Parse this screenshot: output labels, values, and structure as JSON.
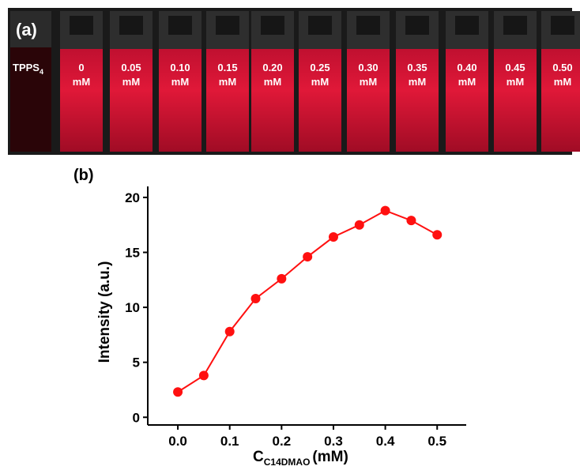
{
  "photo": {
    "label": "(a)",
    "reference": {
      "text": "TPPS",
      "sub": "4"
    },
    "samples": [
      {
        "value": "0",
        "unit": "mM"
      },
      {
        "value": "0.05",
        "unit": "mM"
      },
      {
        "value": "0.10",
        "unit": "mM"
      },
      {
        "value": "0.15",
        "unit": "mM"
      },
      {
        "value": "0.20",
        "unit": "mM"
      },
      {
        "value": "0.25",
        "unit": "mM"
      },
      {
        "value": "0.30",
        "unit": "mM"
      },
      {
        "value": "0.35",
        "unit": "mM"
      },
      {
        "value": "0.40",
        "unit": "mM"
      },
      {
        "value": "0.45",
        "unit": "mM"
      },
      {
        "value": "0.50",
        "unit": "mM"
      }
    ]
  },
  "chart_data": {
    "type": "line",
    "panel_label": "(b)",
    "x_label": {
      "main": "C",
      "sub": "C14DMAO",
      "unit": "(mM)"
    },
    "y_label": "Intensity (a.u.)",
    "x": [
      0,
      0.05,
      0.1,
      0.15,
      0.2,
      0.25,
      0.3,
      0.35,
      0.4,
      0.45,
      0.5
    ],
    "series": [
      {
        "color": "#ff1010",
        "values": [
          2.3,
          3.8,
          7.8,
          10.8,
          12.6,
          14.6,
          16.4,
          17.5,
          18.8,
          17.9,
          16.6
        ]
      }
    ],
    "xlim": [
      -0.058,
      0.556
    ],
    "ylim": [
      -0.7,
      21
    ],
    "xticks": [
      {
        "value": 0,
        "label": "0.0"
      },
      0.1,
      0.2,
      0.3,
      0.4,
      0.5
    ],
    "yticks": [
      0,
      5,
      10,
      15,
      20
    ]
  }
}
